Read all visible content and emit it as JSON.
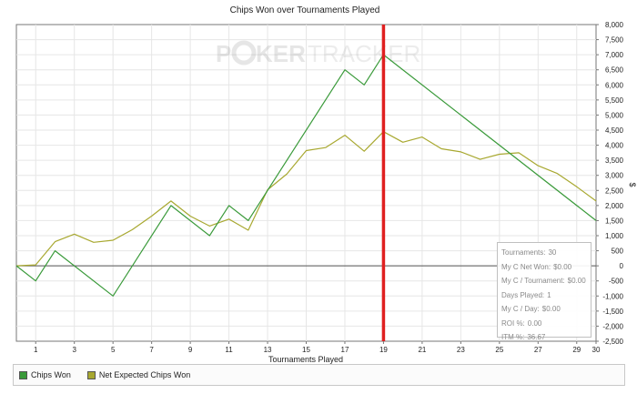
{
  "chart_data": {
    "type": "line",
    "title": "Chips Won over Tournaments Played",
    "xlabel": "Tournaments Played",
    "ylabel": "$",
    "xlim": [
      0,
      30
    ],
    "ylim": [
      -2500,
      8000
    ],
    "x_ticks": [
      1,
      3,
      5,
      7,
      9,
      11,
      13,
      15,
      17,
      19,
      21,
      23,
      25,
      27,
      29,
      30
    ],
    "y_ticks": [
      -2500,
      -2000,
      -1500,
      -1000,
      -500,
      0,
      500,
      1000,
      1500,
      2000,
      2500,
      3000,
      3500,
      4000,
      4500,
      5000,
      5500,
      6000,
      6500,
      7000,
      7500,
      8000
    ],
    "x_tick_labels": [
      "1",
      "3",
      "5",
      "7",
      "9",
      "11",
      "13",
      "15",
      "17",
      "19",
      "21",
      "23",
      "25",
      "27",
      "29",
      "30"
    ],
    "y_tick_labels": [
      "-2,500",
      "-2,000",
      "-1,500",
      "-1,000",
      "-500",
      "0",
      "500",
      "1,000",
      "1,500",
      "2,000",
      "2,500",
      "3,000",
      "3,500",
      "4,000",
      "4,500",
      "5,000",
      "5,500",
      "6,000",
      "6,500",
      "7,000",
      "7,500",
      "8,000"
    ],
    "grid": true,
    "legend_position": "bottom",
    "marker_x": 19,
    "series": [
      {
        "name": "Chips Won",
        "color": "#3a9a3a",
        "x": [
          0,
          1,
          2,
          5,
          8,
          10,
          11,
          12,
          13,
          17,
          18,
          19,
          30
        ],
        "y": [
          0,
          -500,
          500,
          -1000,
          2000,
          1000,
          2000,
          1500,
          2500,
          6500,
          6000,
          7000,
          1500
        ]
      },
      {
        "name": "Net Expected Chips Won",
        "color": "#a8a830",
        "x": [
          0,
          1,
          2,
          3,
          4,
          5,
          6,
          7,
          8,
          9,
          10,
          11,
          12,
          13,
          14,
          15,
          16,
          17,
          18,
          19,
          20,
          21,
          22,
          23,
          24,
          25,
          26,
          27,
          28,
          29,
          30
        ],
        "y": [
          0,
          30,
          800,
          1050,
          780,
          850,
          1200,
          1650,
          2150,
          1650,
          1320,
          1550,
          1180,
          2520,
          3050,
          3820,
          3920,
          4330,
          3800,
          4450,
          4100,
          4270,
          3880,
          3780,
          3530,
          3700,
          3750,
          3320,
          3060,
          2620,
          2150
        ]
      }
    ]
  },
  "watermark": {
    "text_left": "P",
    "text_mid": "KER",
    "text_right": "TRACKER"
  },
  "legend": {
    "items": [
      {
        "label": "Chips Won",
        "color": "#3a9a3a"
      },
      {
        "label": "Net Expected Chips Won",
        "color": "#a8a830"
      }
    ]
  },
  "colors": {
    "marker_line": "#e02020",
    "zero_line": "#555555",
    "grid": "#e6e6e6",
    "frame": "#777777"
  },
  "stats": {
    "rows": [
      {
        "label": "Tournaments:",
        "value": "30"
      },
      {
        "label": "My C Net Won:",
        "value": "$0.00"
      },
      {
        "label": "My C / Tournament:",
        "value": "$0.00"
      },
      {
        "label": "Days Played:",
        "value": "1"
      },
      {
        "label": "My C / Day:",
        "value": "$0.00"
      },
      {
        "label": "ROI %:",
        "value": "0.00"
      },
      {
        "label": "ITM %:",
        "value": "36.67"
      }
    ]
  }
}
